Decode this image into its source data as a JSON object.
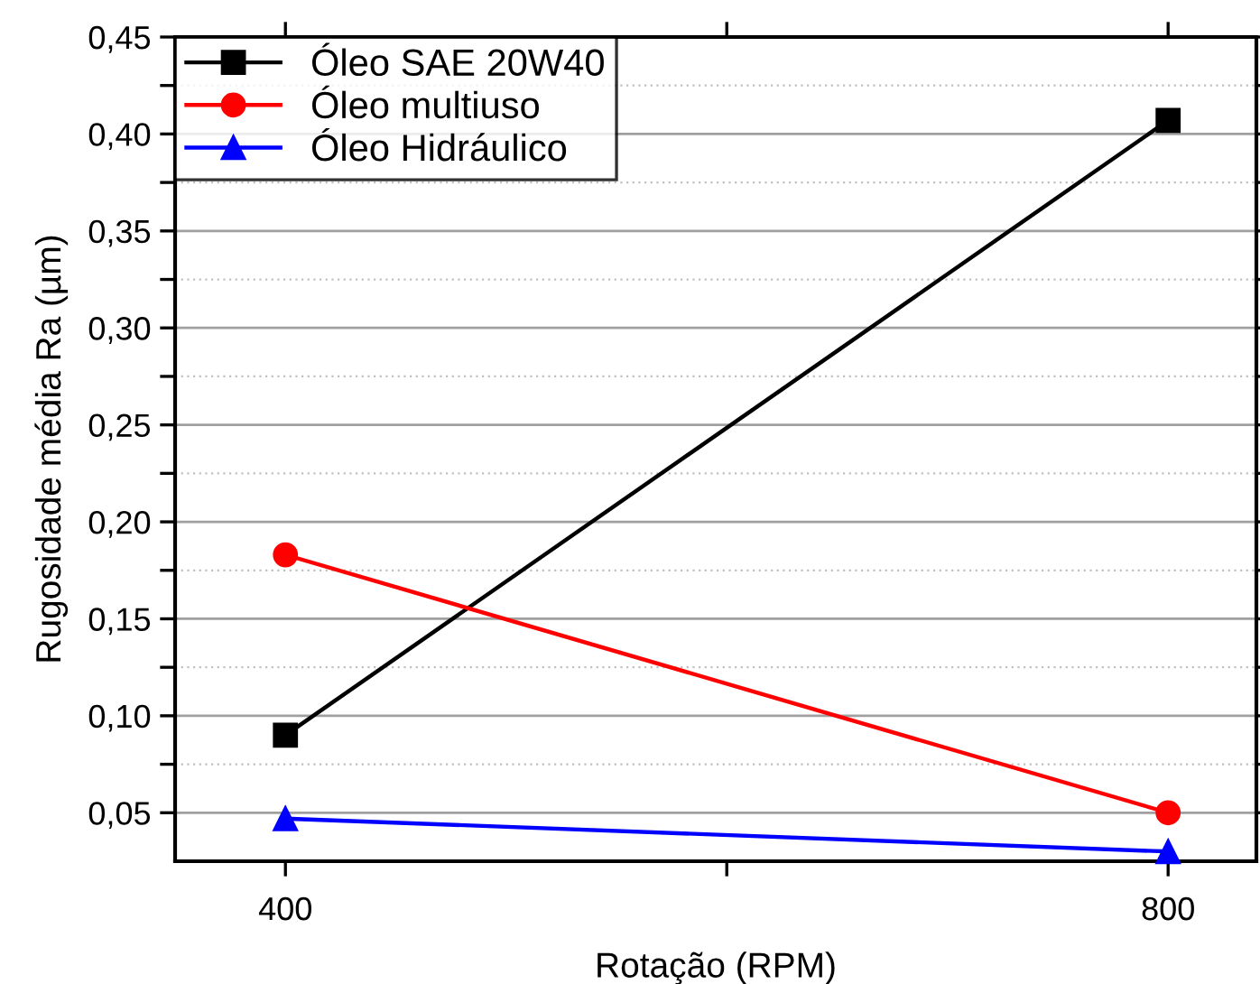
{
  "chart_data": {
    "type": "line",
    "xlabel": "Rotação (RPM)",
    "ylabel": "Rugosidade média Ra (µm)",
    "x": [
      400,
      800
    ],
    "series": [
      {
        "name": "Óleo SAE 20W40",
        "color": "#000000",
        "marker": "square",
        "values": [
          0.09,
          0.407
        ]
      },
      {
        "name": "Óleo multiuso",
        "color": "#ff0000",
        "marker": "circle",
        "values": [
          0.183,
          0.05
        ]
      },
      {
        "name": "Óleo Hidráulico",
        "color": "#0000ff",
        "marker": "triangle",
        "values": [
          0.047,
          0.03
        ]
      }
    ],
    "xlim": [
      350,
      840
    ],
    "xticks": [
      400,
      {
        "value": 600,
        "label": null
      },
      800
    ],
    "ylim": [
      0.025,
      0.45
    ],
    "yticks": [
      {
        "value": 0.05,
        "label": "0,05"
      },
      {
        "value": 0.075,
        "label": null
      },
      {
        "value": 0.1,
        "label": "0,10"
      },
      {
        "value": 0.125,
        "label": null
      },
      {
        "value": 0.15,
        "label": "0,15"
      },
      {
        "value": 0.175,
        "label": null
      },
      {
        "value": 0.2,
        "label": "0,20"
      },
      {
        "value": 0.225,
        "label": null
      },
      {
        "value": 0.25,
        "label": "0,25"
      },
      {
        "value": 0.275,
        "label": null
      },
      {
        "value": 0.3,
        "label": "0,30"
      },
      {
        "value": 0.325,
        "label": null
      },
      {
        "value": 0.35,
        "label": "0,35"
      },
      {
        "value": 0.375,
        "label": null
      },
      {
        "value": 0.4,
        "label": "0,40"
      },
      {
        "value": 0.425,
        "label": null
      },
      {
        "value": 0.45,
        "label": "0,45"
      }
    ],
    "grid": "y",
    "legend": "top left",
    "line_style": "solid"
  }
}
